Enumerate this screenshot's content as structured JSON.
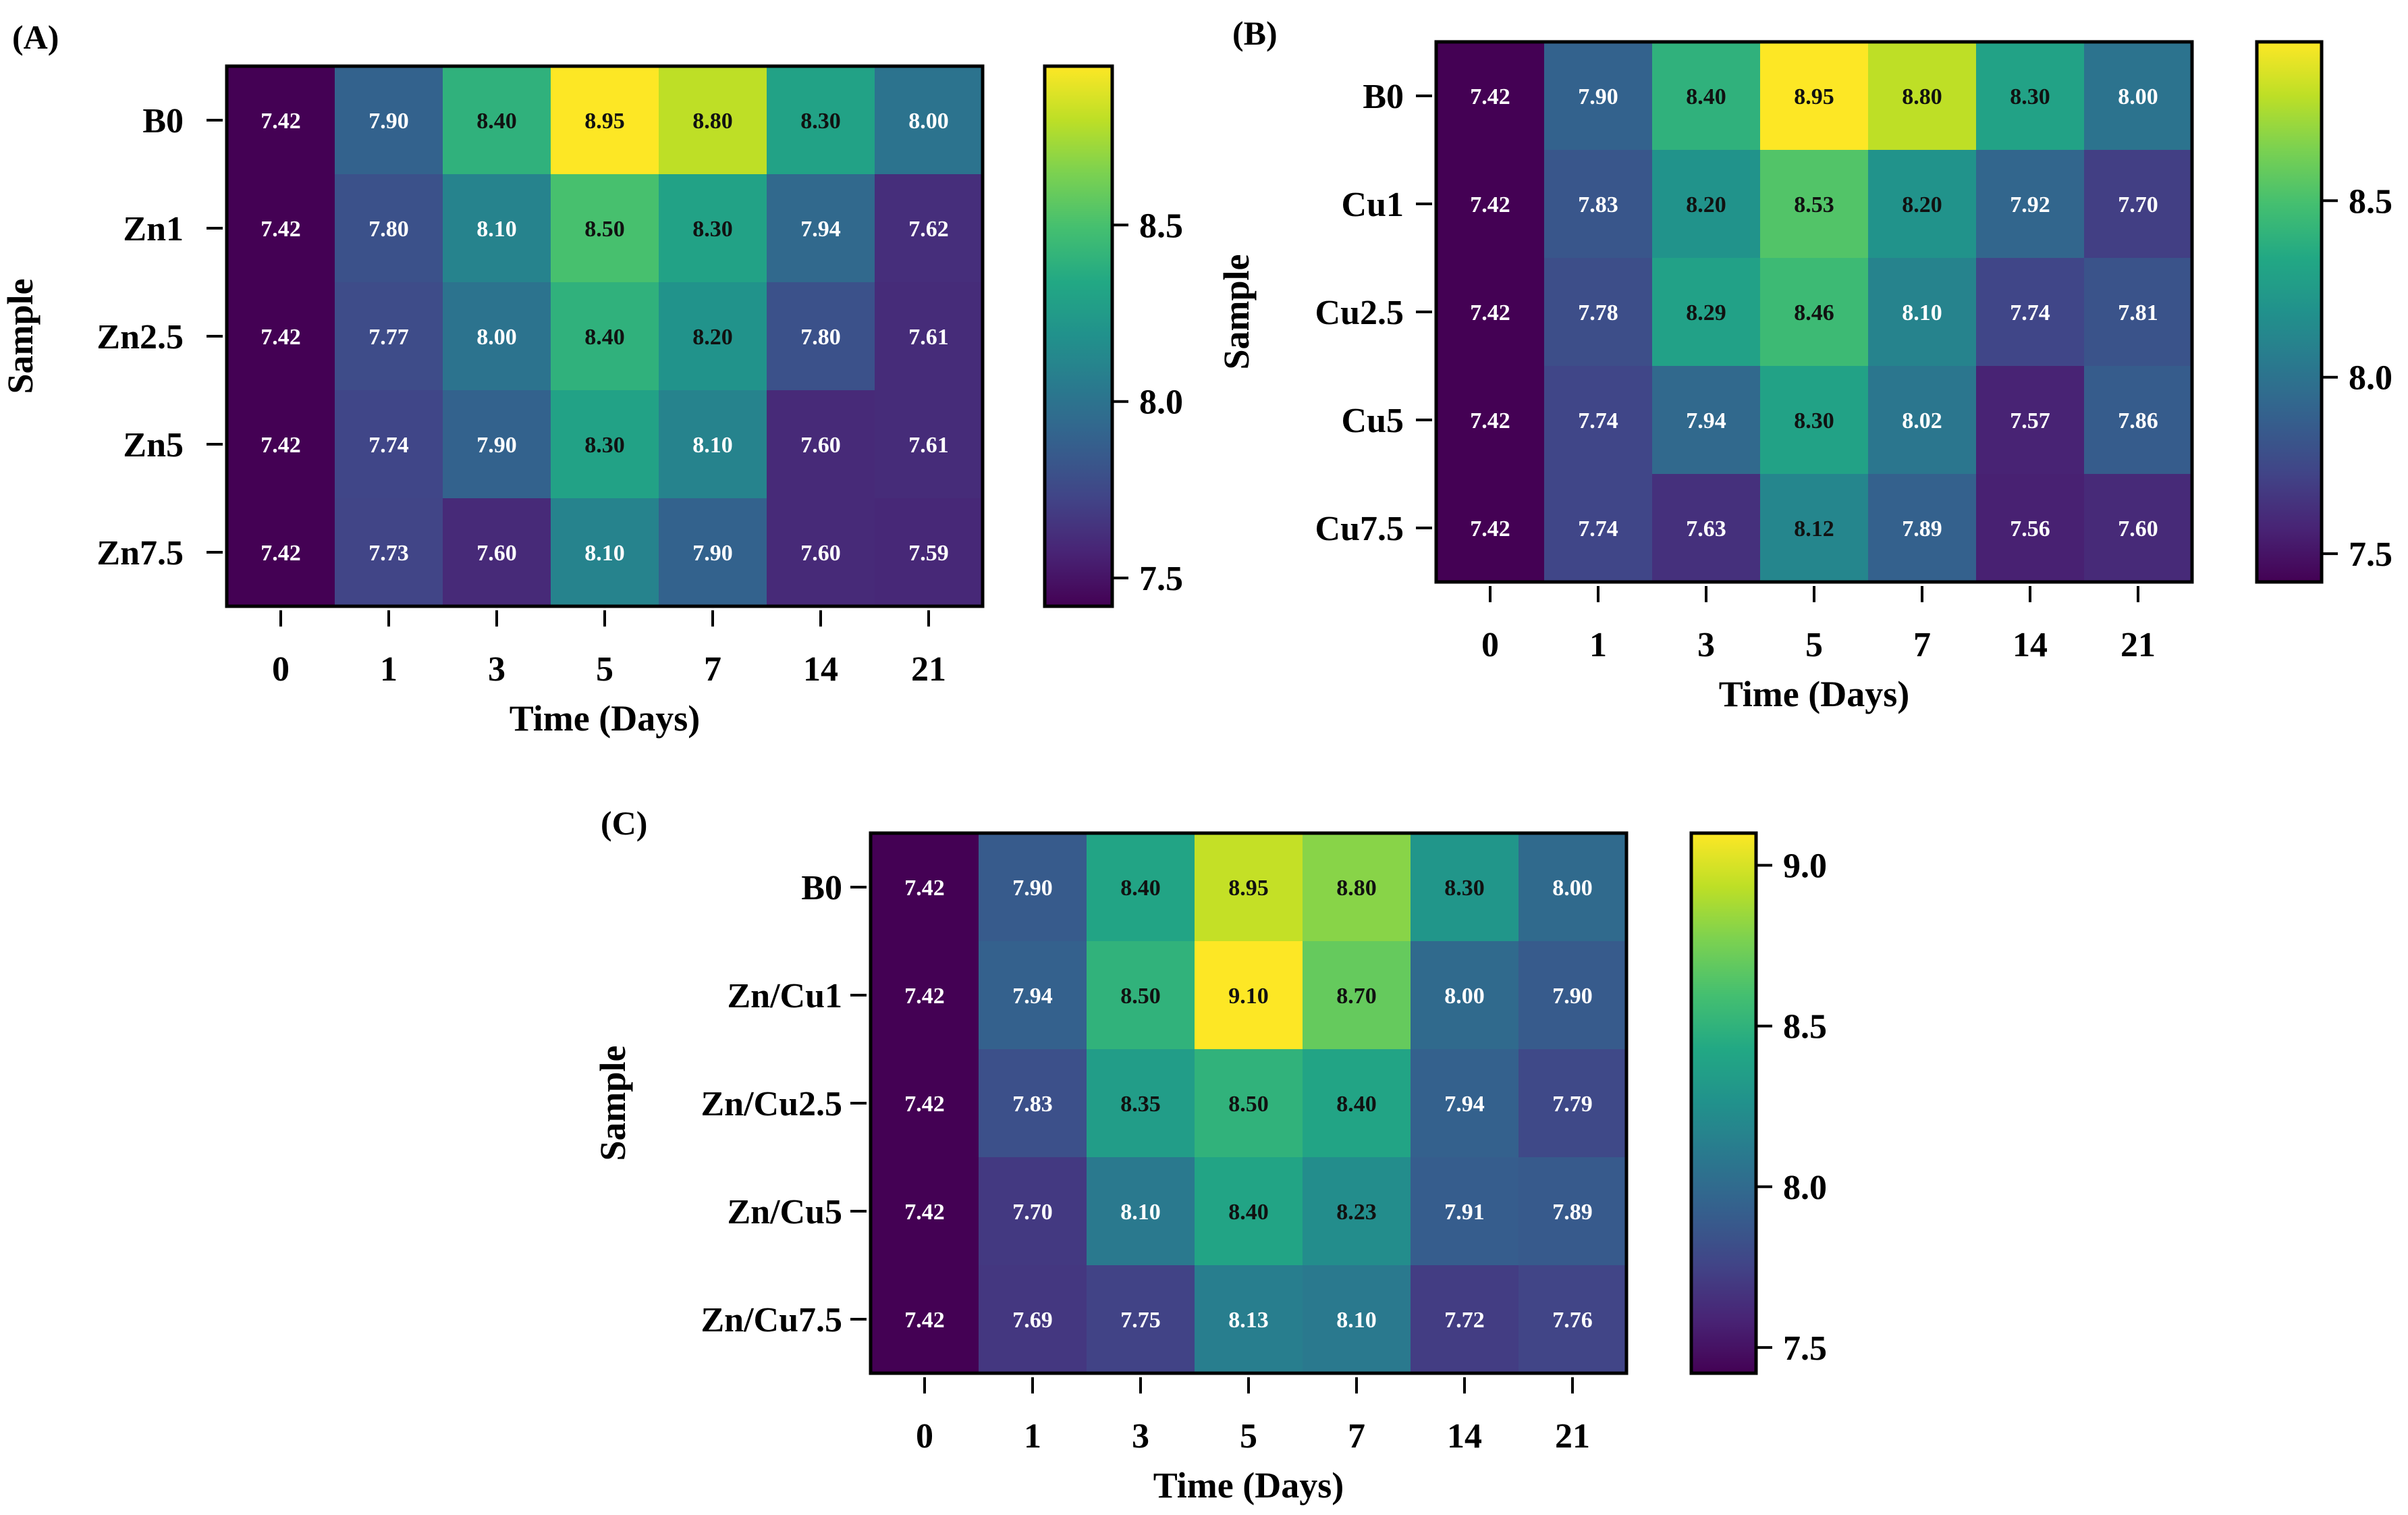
{
  "chart_data": [
    {
      "type": "heatmap",
      "panel_label": "(A)",
      "xlabel": "Time (Days)",
      "ylabel": "Sample",
      "categories": [
        "0",
        "1",
        "3",
        "5",
        "7",
        "14",
        "21"
      ],
      "rows": [
        "B0",
        "Zn1",
        "Zn2.5",
        "Zn5",
        "Zn7.5"
      ],
      "values": [
        [
          "7.42",
          "7.90",
          "8.40",
          "8.95",
          "8.80",
          "8.30",
          "8.00"
        ],
        [
          "7.42",
          "7.80",
          "8.10",
          "8.50",
          "8.30",
          "7.94",
          "7.62"
        ],
        [
          "7.42",
          "7.77",
          "8.00",
          "8.40",
          "8.20",
          "7.80",
          "7.61"
        ],
        [
          "7.42",
          "7.74",
          "7.90",
          "8.30",
          "8.10",
          "7.60",
          "7.61"
        ],
        [
          "7.42",
          "7.73",
          "7.60",
          "8.10",
          "7.90",
          "7.60",
          "7.59"
        ]
      ],
      "colorbar": {
        "min": 7.42,
        "max": 8.95,
        "ticks": [
          "7.5",
          "8.0",
          "8.5"
        ]
      }
    },
    {
      "type": "heatmap",
      "panel_label": "(B)",
      "xlabel": "Time (Days)",
      "ylabel": "Sample",
      "categories": [
        "0",
        "1",
        "3",
        "5",
        "7",
        "14",
        "21"
      ],
      "rows": [
        "B0",
        "Cu1",
        "Cu2.5",
        "Cu5",
        "Cu7.5"
      ],
      "values": [
        [
          "7.42",
          "7.90",
          "8.40",
          "8.95",
          "8.80",
          "8.30",
          "8.00"
        ],
        [
          "7.42",
          "7.83",
          "8.20",
          "8.53",
          "8.20",
          "7.92",
          "7.70"
        ],
        [
          "7.42",
          "7.78",
          "8.29",
          "8.46",
          "8.10",
          "7.74",
          "7.81"
        ],
        [
          "7.42",
          "7.74",
          "7.94",
          "8.30",
          "8.02",
          "7.57",
          "7.86"
        ],
        [
          "7.42",
          "7.74",
          "7.63",
          "8.12",
          "7.89",
          "7.56",
          "7.60"
        ]
      ],
      "colorbar": {
        "min": 7.42,
        "max": 8.95,
        "ticks": [
          "7.5",
          "8.0",
          "8.5"
        ]
      }
    },
    {
      "type": "heatmap",
      "panel_label": "(C)",
      "xlabel": "Time (Days)",
      "ylabel": "Sample",
      "categories": [
        "0",
        "1",
        "3",
        "5",
        "7",
        "14",
        "21"
      ],
      "rows": [
        "B0",
        "Zn/Cu1",
        "Zn/Cu2.5",
        "Zn/Cu5",
        "Zn/Cu7.5"
      ],
      "values": [
        [
          "7.42",
          "7.90",
          "8.40",
          "8.95",
          "8.80",
          "8.30",
          "8.00"
        ],
        [
          "7.42",
          "7.94",
          "8.50",
          "9.10",
          "8.70",
          "8.00",
          "7.90"
        ],
        [
          "7.42",
          "7.83",
          "8.35",
          "8.50",
          "8.40",
          "7.94",
          "7.79"
        ],
        [
          "7.42",
          "7.70",
          "8.10",
          "8.40",
          "8.23",
          "7.91",
          "7.89"
        ],
        [
          "7.42",
          "7.69",
          "7.75",
          "8.13",
          "8.10",
          "7.72",
          "7.76"
        ]
      ],
      "colorbar": {
        "min": 7.42,
        "max": 9.1,
        "ticks": [
          "7.5",
          "8.0",
          "8.5",
          "9.0"
        ]
      }
    }
  ]
}
